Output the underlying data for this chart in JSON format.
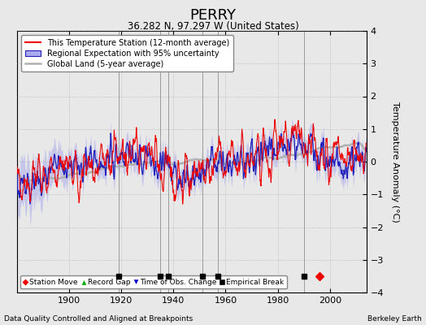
{
  "title": "PERRY",
  "subtitle": "36.282 N, 97.297 W (United States)",
  "ylabel": "Temperature Anomaly (°C)",
  "footer_left": "Data Quality Controlled and Aligned at Breakpoints",
  "footer_right": "Berkeley Earth",
  "ylim": [
    -4,
    4
  ],
  "xlim": [
    1880,
    2014
  ],
  "xticks": [
    1900,
    1920,
    1940,
    1960,
    1980,
    2000
  ],
  "yticks": [
    -4,
    -3,
    -2,
    -1,
    0,
    1,
    2,
    3,
    4
  ],
  "empirical_breaks": [
    1919,
    1935,
    1938,
    1951,
    1957,
    1990
  ],
  "station_moves": [
    1996
  ],
  "background_color": "#e8e8e8",
  "plot_bg_color": "#e8e8e8",
  "seed": 17
}
